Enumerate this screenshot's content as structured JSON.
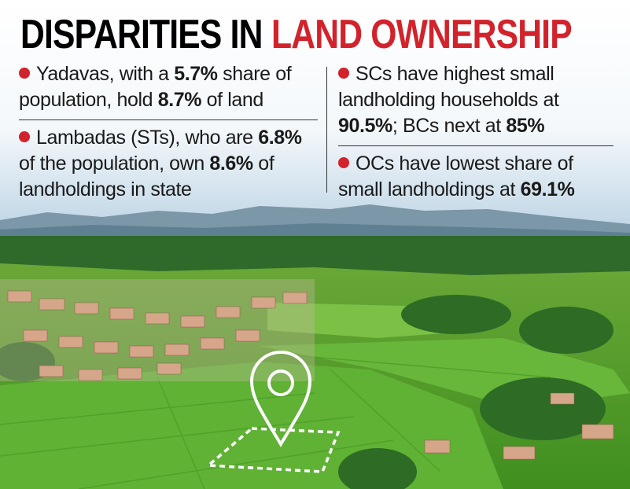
{
  "title": {
    "first": "DISPARITIES IN",
    "second": "LAND OWNERSHIP"
  },
  "left_column": [
    {
      "segments": [
        "Yadavas, with a ",
        "5.7%",
        " share of population, hold ",
        "8.7%",
        " of land"
      ]
    },
    {
      "segments": [
        "Lambadas (STs), who are ",
        "6.8%",
        " of the population, own ",
        "8.6%",
        " of landholdings in state"
      ]
    }
  ],
  "right_column": [
    {
      "segments": [
        "SCs have highest small landholding households at ",
        "90.5%",
        "; BCs next at ",
        "85%"
      ]
    },
    {
      "segments": [
        "OCs have lowest share of small landholdings at ",
        "69.1%"
      ]
    }
  ]
}
